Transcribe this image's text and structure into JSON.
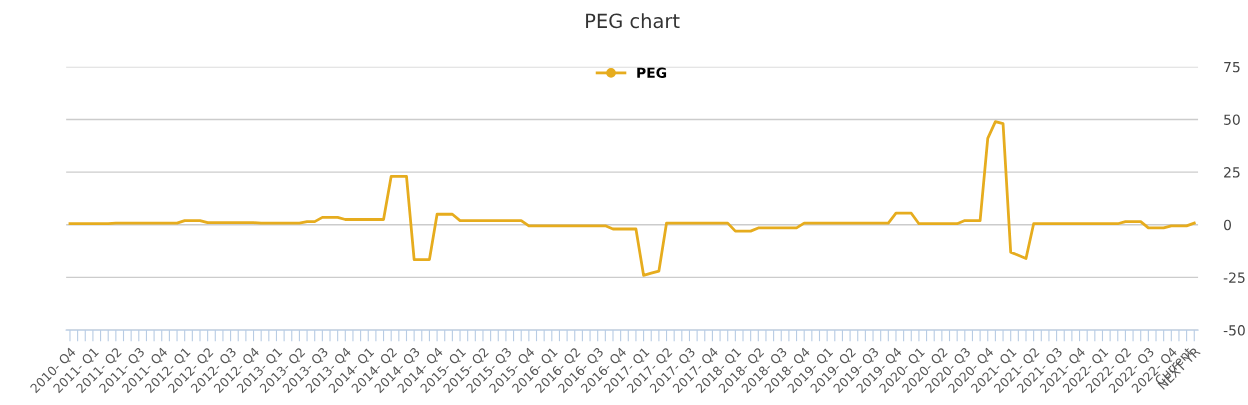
{
  "chart_data": {
    "type": "line",
    "title": "PEG chart",
    "categories": [
      "2010- Q4",
      null,
      null,
      "2011- Q1",
      null,
      null,
      "2011- Q2",
      null,
      null,
      "2011- Q3",
      null,
      null,
      "2011- Q4",
      null,
      null,
      "2012- Q1",
      null,
      null,
      "2012- Q2",
      null,
      null,
      "2012- Q3",
      null,
      null,
      "2012- Q4",
      null,
      null,
      "2013- Q1",
      null,
      null,
      "2013- Q2",
      null,
      null,
      "2013- Q3",
      null,
      null,
      "2013- Q4",
      null,
      null,
      "2014- Q1",
      null,
      null,
      "2014- Q2",
      null,
      null,
      "2014- Q3",
      null,
      null,
      "2014- Q4",
      null,
      null,
      "2015- Q1",
      null,
      null,
      "2015- Q2",
      null,
      null,
      "2015- Q3",
      null,
      null,
      "2015- Q4",
      null,
      null,
      "2016- Q1",
      null,
      null,
      "2016- Q2",
      null,
      null,
      "2016- Q3",
      null,
      null,
      "2016- Q4",
      null,
      null,
      "2017- Q1",
      null,
      null,
      "2017- Q2",
      null,
      null,
      "2017- Q3",
      null,
      null,
      "2017- Q4",
      null,
      null,
      "2018- Q1",
      null,
      null,
      "2018- Q2",
      null,
      null,
      "2018- Q3",
      null,
      null,
      "2018- Q4",
      null,
      null,
      "2019- Q1",
      null,
      null,
      "2019- Q2",
      null,
      null,
      "2019- Q3",
      null,
      null,
      "2019- Q4",
      null,
      null,
      "2020- Q1",
      null,
      null,
      "2020- Q2",
      null,
      null,
      "2020- Q3",
      null,
      null,
      "2020- Q4",
      null,
      null,
      "2021- Q1",
      null,
      null,
      "2021- Q2",
      null,
      null,
      "2021- Q3",
      null,
      null,
      "2021- Q4",
      null,
      null,
      "2022- Q1",
      null,
      null,
      "2022- Q2",
      null,
      null,
      "2022- Q3",
      null,
      null,
      "2022- Q4",
      null,
      "Current",
      "NEXT YR"
    ],
    "series": [
      {
        "name": "PEG",
        "color": "#e6ac1e",
        "values": [
          0.5,
          0.5,
          0.5,
          0.5,
          0.5,
          0.5,
          0.8,
          0.8,
          0.8,
          0.8,
          0.8,
          0.8,
          0.8,
          0.8,
          0.8,
          2,
          2,
          2,
          1,
          1,
          1,
          1,
          1,
          1,
          1,
          0.8,
          0.8,
          0.8,
          0.8,
          0.8,
          0.8,
          1.5,
          1.5,
          3.5,
          3.5,
          3.5,
          2.5,
          2.5,
          2.5,
          2.5,
          2.5,
          2.5,
          23,
          23,
          23,
          -16.5,
          -16.5,
          -16.5,
          5,
          5,
          5,
          2,
          2,
          2,
          2,
          2,
          2,
          2,
          2,
          2,
          -0.5,
          -0.5,
          -0.5,
          -0.5,
          -0.5,
          -0.5,
          -0.5,
          -0.5,
          -0.5,
          -0.5,
          -0.5,
          -2,
          -2,
          -2,
          -2,
          -24,
          -23,
          -22,
          0.8,
          0.8,
          0.8,
          0.8,
          0.8,
          0.8,
          0.8,
          0.8,
          0.8,
          -3,
          -3,
          -3,
          -1.5,
          -1.5,
          -1.5,
          -1.5,
          -1.5,
          -1.5,
          0.8,
          0.8,
          0.8,
          0.8,
          0.8,
          0.8,
          0.8,
          0.8,
          0.8,
          0.8,
          0.8,
          0.8,
          5.5,
          5.5,
          5.5,
          0.5,
          0.5,
          0.5,
          0.5,
          0.5,
          0.5,
          2,
          2,
          2,
          41,
          49,
          48,
          -13,
          -14.5,
          -16,
          0.5,
          0.5,
          0.5,
          0.5,
          0.5,
          0.5,
          0.5,
          0.5,
          0.5,
          0.5,
          0.5,
          0.5,
          1.5,
          1.5,
          1.5,
          -1.5,
          -1.5,
          -1.5,
          -0.5,
          -0.5,
          -0.5,
          0.8
        ]
      }
    ],
    "ylim": [
      -50,
      75
    ],
    "yticks": [
      -50,
      -25,
      0,
      25,
      50,
      75
    ],
    "grid": "y",
    "legend": "top",
    "line_style": "solid"
  }
}
